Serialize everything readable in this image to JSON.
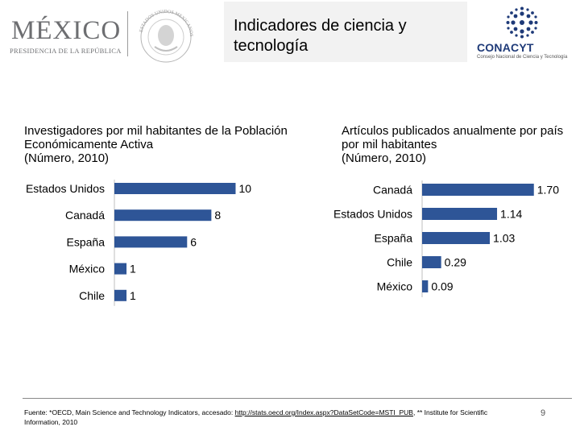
{
  "header": {
    "gov_logo_name": "MÉXICO",
    "gov_logo_subtitle": "PRESIDENCIA DE LA REPÚBLICA",
    "seal_caption": "ESTADOS UNIDOS MEXICANOS",
    "title": "Indicadores de ciencia y tecnología",
    "conacyt_name": "CONACYT",
    "conacyt_tagline": "Consejo Nacional de Ciencia y Tecnología"
  },
  "charts": {
    "left": {
      "title_line1": "Investigadores por mil habitantes de la Población Económicamente Activa",
      "units": "(Número, 2010)"
    },
    "right": {
      "title_line1": "Artículos publicados anualmente por país por mil habitantes",
      "units": "(Número, 2010)"
    }
  },
  "chart_data": [
    {
      "type": "bar",
      "orientation": "horizontal",
      "title": "Investigadores por mil habitantes de la Población Económicamente Activa (Número, 2010)",
      "categories": [
        "Estados Unidos",
        "Canadá",
        "España",
        "México",
        "Chile"
      ],
      "values": [
        10,
        8,
        6,
        1,
        1
      ],
      "value_labels": [
        "10",
        "8",
        "6",
        "1",
        "1"
      ],
      "xlim": [
        0,
        10.5
      ],
      "color": "#2e5597"
    },
    {
      "type": "bar",
      "orientation": "horizontal",
      "title": "Artículos publicados anualmente por país por mil habitantes (Número, 2010)",
      "categories": [
        "Canadá",
        "Estados Unidos",
        "España",
        "Chile",
        "México"
      ],
      "values": [
        1.7,
        1.14,
        1.03,
        0.29,
        0.09
      ],
      "value_labels": [
        "1.70",
        "1.14",
        "1.03",
        "0.29",
        "0.09"
      ],
      "xlim": [
        0,
        1.74
      ],
      "color": "#2e5597"
    }
  ],
  "footer": {
    "source_prefix": "Fuente: *OECD, Main Science and Technology Indicators, accesado: ",
    "source_link": "http://stats.oecd.org/Index.aspx?DataSetCode=MSTI_PUB",
    "source_suffix": ", ** Institute for Scientific Information, 2010",
    "page_number": "9"
  }
}
